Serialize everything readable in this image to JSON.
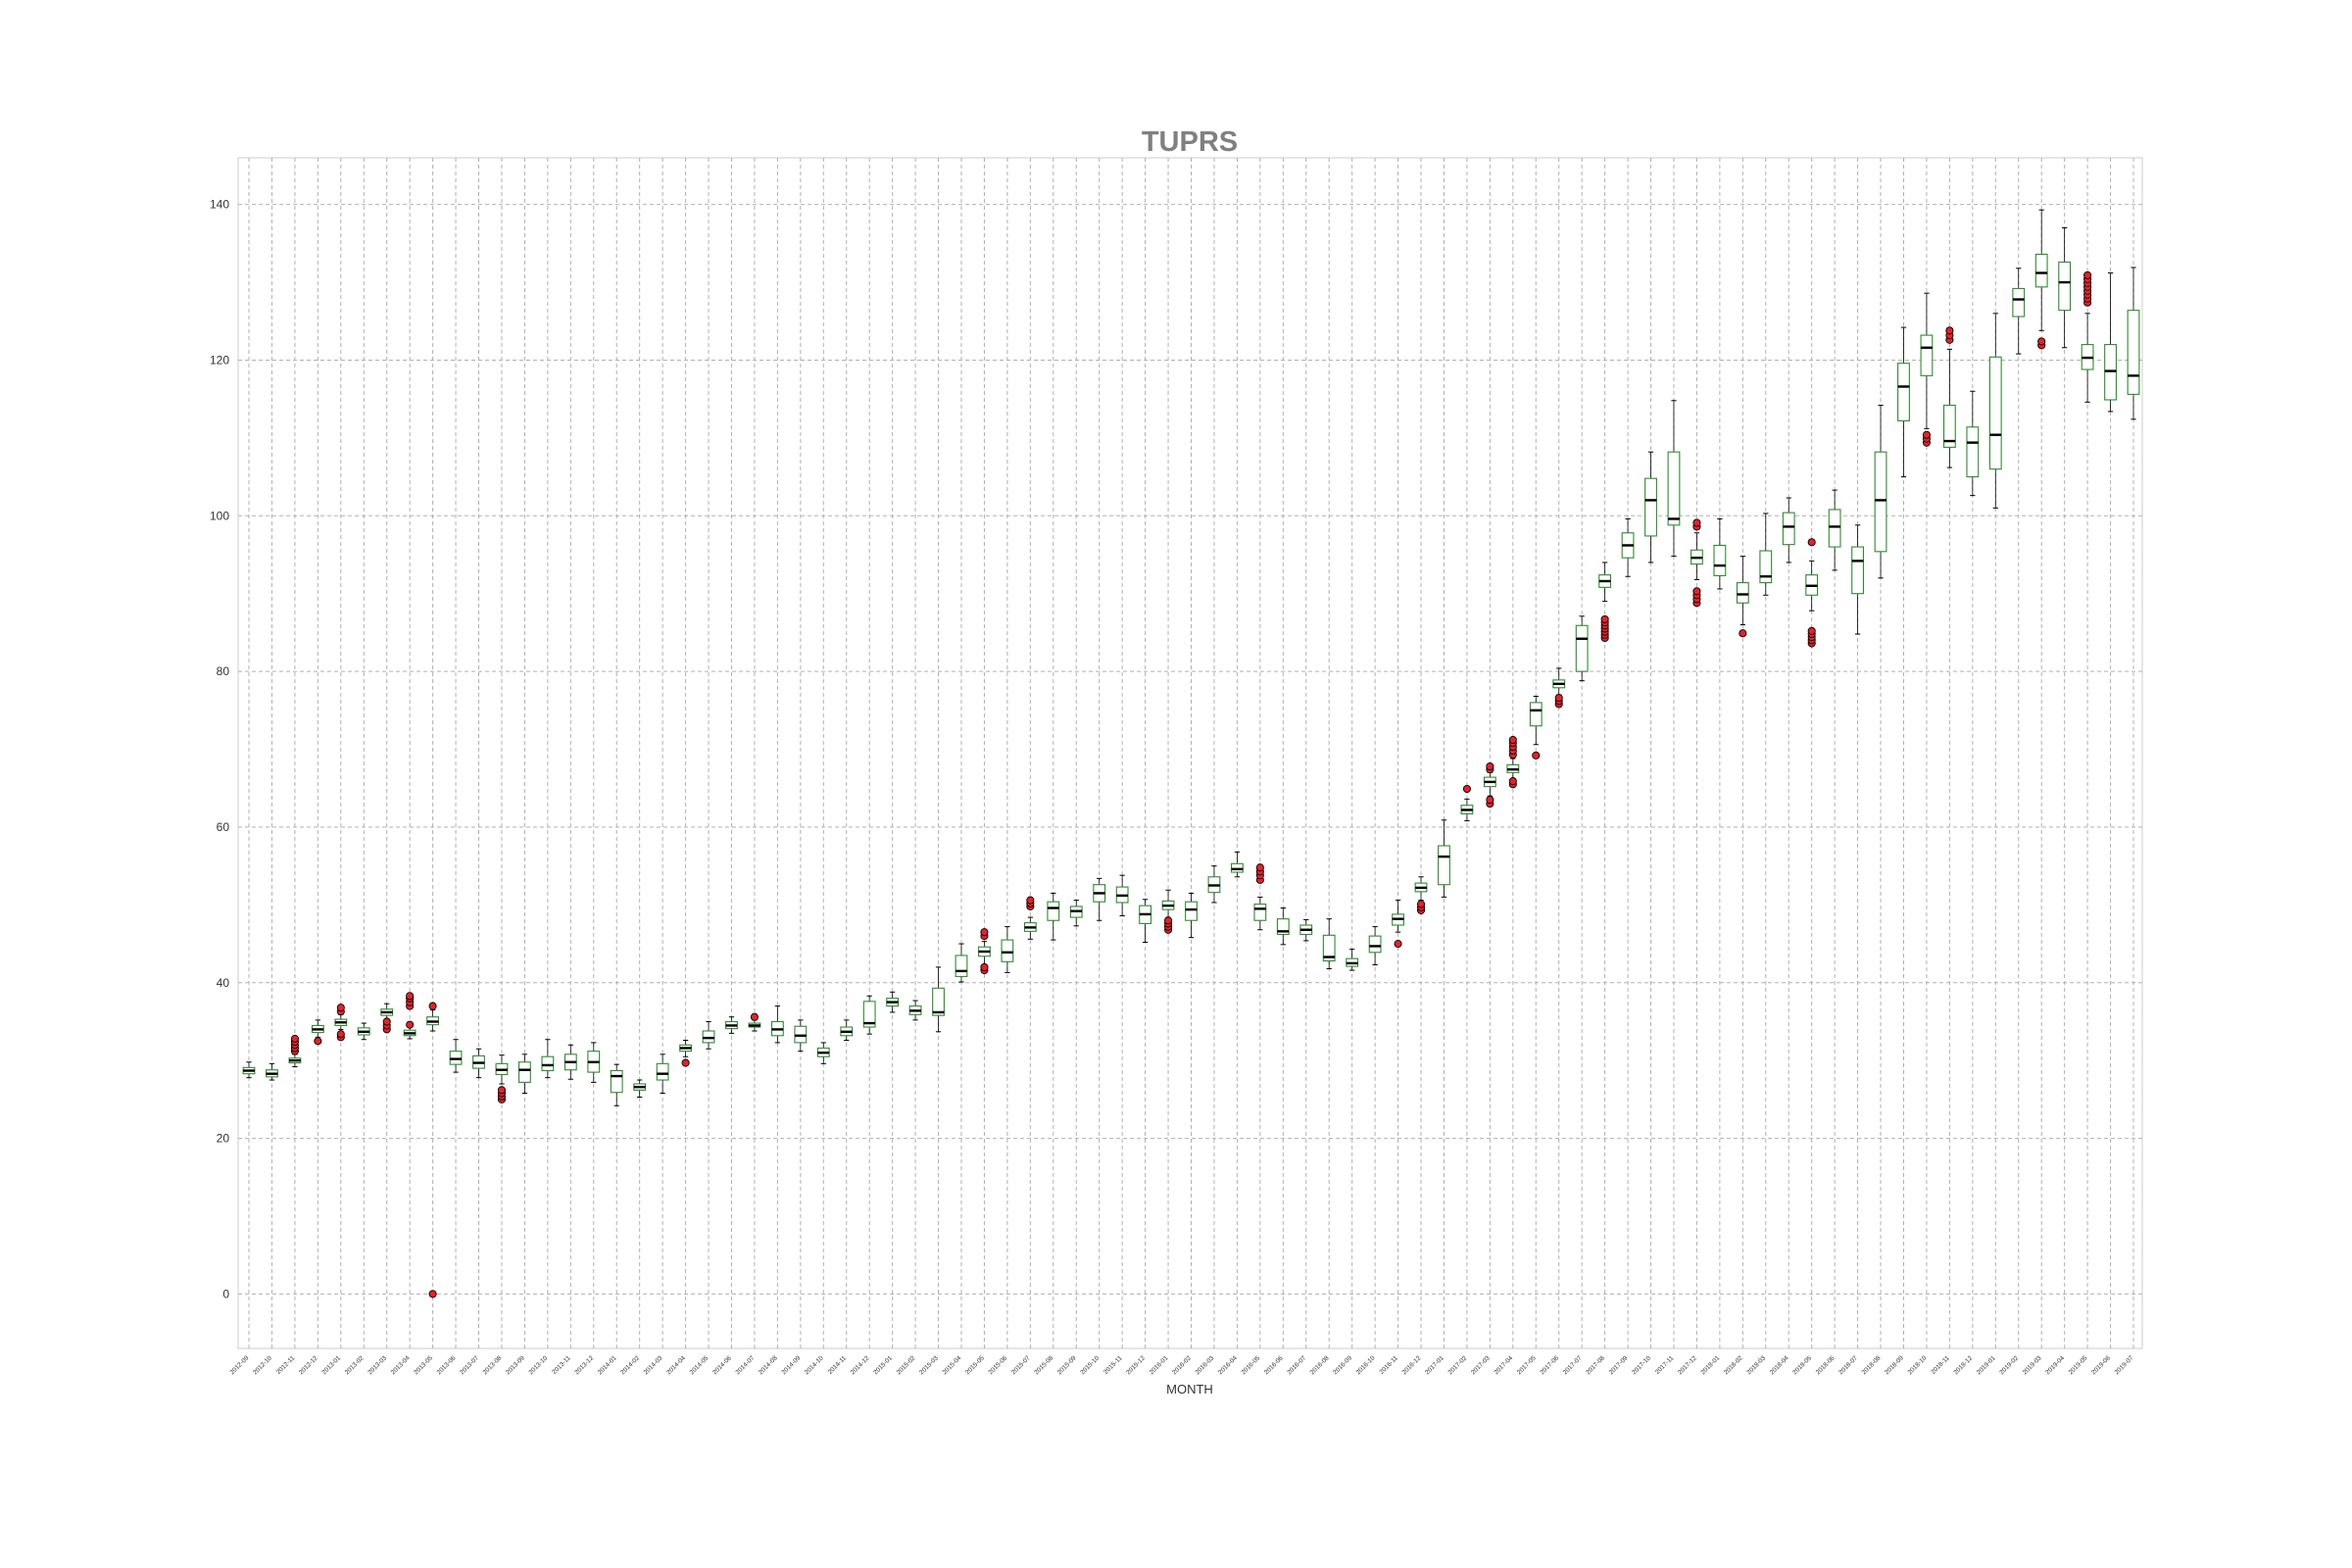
{
  "chart_data": {
    "type": "box",
    "title": "TUPRS",
    "xlabel": "MONTH",
    "ylabel": "",
    "ylim": [
      -7,
      146
    ],
    "yticks": [
      0,
      20,
      40,
      60,
      80,
      100,
      120,
      140
    ],
    "grid": true,
    "colors": {
      "box": "#2e8b2e",
      "median": "#000000",
      "outlier_fill": "#e8202a",
      "outlier_edge": "#000000",
      "whisker": "#000000",
      "grid": "#b0b0b0",
      "title": "#808080"
    },
    "boxes": [
      {
        "label": "2012-09",
        "whislo": 27.8,
        "q1": 28.3,
        "med": 28.7,
        "q3": 29.1,
        "whishi": 29.8,
        "fliers": []
      },
      {
        "label": "2012-10",
        "whislo": 27.5,
        "q1": 27.9,
        "med": 28.3,
        "q3": 28.8,
        "whishi": 29.6,
        "fliers": []
      },
      {
        "label": "2012-11",
        "whislo": 29.2,
        "q1": 29.7,
        "med": 30.0,
        "q3": 30.3,
        "whishi": 30.8,
        "fliers": [
          31.2,
          31.6,
          32.0,
          32.4,
          32.8
        ]
      },
      {
        "label": "2012-12",
        "whislo": 33.0,
        "q1": 33.6,
        "med": 34.0,
        "q3": 34.5,
        "whishi": 35.2,
        "fliers": [
          32.5
        ]
      },
      {
        "label": "2013-01",
        "whislo": 34.0,
        "q1": 34.5,
        "med": 34.9,
        "q3": 35.3,
        "whishi": 35.9,
        "fliers": [
          33.0,
          33.4,
          36.3,
          36.8
        ]
      },
      {
        "label": "2013-02",
        "whislo": 32.7,
        "q1": 33.3,
        "med": 33.7,
        "q3": 34.2,
        "whishi": 34.8,
        "fliers": []
      },
      {
        "label": "2013-03",
        "whislo": 35.0,
        "q1": 35.8,
        "med": 36.2,
        "q3": 36.6,
        "whishi": 37.3,
        "fliers": [
          34.0,
          34.5,
          35.0
        ]
      },
      {
        "label": "2013-04",
        "whislo": 32.8,
        "q1": 33.2,
        "med": 33.5,
        "q3": 33.9,
        "whishi": 34.3,
        "fliers": [
          34.6,
          37.0,
          37.5,
          38.0,
          38.3
        ]
      },
      {
        "label": "2013-05",
        "whislo": 33.8,
        "q1": 34.6,
        "med": 35.0,
        "q3": 35.6,
        "whishi": 36.5,
        "fliers": [
          37.0,
          0.0
        ]
      },
      {
        "label": "2013-06",
        "whislo": 28.5,
        "q1": 29.5,
        "med": 30.2,
        "q3": 31.2,
        "whishi": 32.7,
        "fliers": []
      },
      {
        "label": "2013-07",
        "whislo": 27.8,
        "q1": 29.0,
        "med": 29.7,
        "q3": 30.6,
        "whishi": 31.5,
        "fliers": []
      },
      {
        "label": "2013-08",
        "whislo": 27.0,
        "q1": 28.2,
        "med": 28.8,
        "q3": 29.6,
        "whishi": 30.7,
        "fliers": [
          25.0,
          25.4,
          25.8,
          26.2
        ]
      },
      {
        "label": "2013-09",
        "whislo": 25.8,
        "q1": 27.2,
        "med": 28.8,
        "q3": 29.8,
        "whishi": 30.8,
        "fliers": []
      },
      {
        "label": "2013-10",
        "whislo": 27.8,
        "q1": 28.7,
        "med": 29.4,
        "q3": 30.5,
        "whishi": 32.7,
        "fliers": []
      },
      {
        "label": "2013-11",
        "whislo": 27.6,
        "q1": 28.8,
        "med": 29.8,
        "q3": 30.8,
        "whishi": 32.0,
        "fliers": []
      },
      {
        "label": "2013-12",
        "whislo": 27.2,
        "q1": 28.5,
        "med": 29.8,
        "q3": 31.2,
        "whishi": 32.3,
        "fliers": []
      },
      {
        "label": "2014-01",
        "whislo": 24.2,
        "q1": 25.9,
        "med": 28.0,
        "q3": 28.7,
        "whishi": 29.5,
        "fliers": []
      },
      {
        "label": "2014-02",
        "whislo": 25.3,
        "q1": 26.2,
        "med": 26.6,
        "q3": 27.0,
        "whishi": 27.5,
        "fliers": []
      },
      {
        "label": "2014-03",
        "whislo": 25.8,
        "q1": 27.5,
        "med": 28.3,
        "q3": 29.6,
        "whishi": 30.8,
        "fliers": []
      },
      {
        "label": "2014-04",
        "whislo": 30.5,
        "q1": 31.2,
        "med": 31.6,
        "q3": 32.0,
        "whishi": 32.6,
        "fliers": [
          29.7
        ]
      },
      {
        "label": "2014-05",
        "whislo": 31.5,
        "q1": 32.3,
        "med": 32.9,
        "q3": 33.8,
        "whishi": 35.0,
        "fliers": []
      },
      {
        "label": "2014-06",
        "whislo": 33.5,
        "q1": 34.1,
        "med": 34.5,
        "q3": 35.0,
        "whishi": 35.6,
        "fliers": []
      },
      {
        "label": "2014-07",
        "whislo": 33.8,
        "q1": 34.3,
        "med": 34.5,
        "q3": 34.8,
        "whishi": 35.2,
        "fliers": [
          35.6
        ]
      },
      {
        "label": "2014-08",
        "whislo": 32.3,
        "q1": 33.2,
        "med": 34.0,
        "q3": 35.0,
        "whishi": 37.0,
        "fliers": []
      },
      {
        "label": "2014-09",
        "whislo": 31.2,
        "q1": 32.3,
        "med": 33.2,
        "q3": 34.4,
        "whishi": 35.2,
        "fliers": []
      },
      {
        "label": "2014-10",
        "whislo": 29.6,
        "q1": 30.5,
        "med": 31.0,
        "q3": 31.6,
        "whishi": 32.3,
        "fliers": []
      },
      {
        "label": "2014-11",
        "whislo": 32.6,
        "q1": 33.2,
        "med": 33.7,
        "q3": 34.3,
        "whishi": 35.2,
        "fliers": []
      },
      {
        "label": "2014-12",
        "whislo": 33.4,
        "q1": 34.3,
        "med": 34.8,
        "q3": 37.6,
        "whishi": 38.3,
        "fliers": []
      },
      {
        "label": "2015-01",
        "whislo": 36.2,
        "q1": 37.0,
        "med": 37.5,
        "q3": 38.0,
        "whishi": 38.8,
        "fliers": []
      },
      {
        "label": "2015-02",
        "whislo": 35.2,
        "q1": 35.9,
        "med": 36.4,
        "q3": 37.0,
        "whishi": 37.7,
        "fliers": []
      },
      {
        "label": "2015-03",
        "whislo": 33.7,
        "q1": 35.8,
        "med": 36.2,
        "q3": 39.3,
        "whishi": 42.0,
        "fliers": []
      },
      {
        "label": "2015-04",
        "whislo": 40.1,
        "q1": 40.8,
        "med": 41.5,
        "q3": 43.5,
        "whishi": 45.0,
        "fliers": []
      },
      {
        "label": "2015-05",
        "whislo": 42.3,
        "q1": 43.4,
        "med": 44.0,
        "q3": 44.6,
        "whishi": 45.3,
        "fliers": [
          41.6,
          42.0,
          46.0,
          46.5
        ]
      },
      {
        "label": "2015-06",
        "whislo": 41.3,
        "q1": 42.7,
        "med": 43.9,
        "q3": 45.5,
        "whishi": 47.2,
        "fliers": []
      },
      {
        "label": "2015-07",
        "whislo": 45.6,
        "q1": 46.6,
        "med": 47.1,
        "q3": 47.7,
        "whishi": 48.4,
        "fliers": [
          49.8,
          50.2,
          50.6
        ]
      },
      {
        "label": "2015-08",
        "whislo": 45.5,
        "q1": 48.0,
        "med": 49.6,
        "q3": 50.4,
        "whishi": 51.5,
        "fliers": []
      },
      {
        "label": "2015-09",
        "whislo": 47.3,
        "q1": 48.4,
        "med": 49.2,
        "q3": 49.8,
        "whishi": 50.6,
        "fliers": []
      },
      {
        "label": "2015-10",
        "whislo": 48.0,
        "q1": 50.4,
        "med": 51.5,
        "q3": 52.6,
        "whishi": 53.4,
        "fliers": []
      },
      {
        "label": "2015-11",
        "whislo": 48.6,
        "q1": 50.3,
        "med": 51.2,
        "q3": 52.3,
        "whishi": 53.8,
        "fliers": []
      },
      {
        "label": "2015-12",
        "whislo": 45.2,
        "q1": 47.6,
        "med": 48.8,
        "q3": 49.9,
        "whishi": 50.7,
        "fliers": []
      },
      {
        "label": "2016-01",
        "whislo": 48.3,
        "q1": 49.4,
        "med": 49.9,
        "q3": 50.5,
        "whishi": 51.9,
        "fliers": [
          46.8,
          47.2,
          47.6,
          48.0
        ]
      },
      {
        "label": "2016-02",
        "whislo": 45.8,
        "q1": 48.0,
        "med": 49.4,
        "q3": 50.4,
        "whishi": 51.5,
        "fliers": []
      },
      {
        "label": "2016-03",
        "whislo": 50.3,
        "q1": 51.6,
        "med": 52.5,
        "q3": 53.6,
        "whishi": 55.0,
        "fliers": []
      },
      {
        "label": "2016-04",
        "whislo": 53.6,
        "q1": 54.2,
        "med": 54.6,
        "q3": 55.3,
        "whishi": 56.8,
        "fliers": []
      },
      {
        "label": "2016-05",
        "whislo": 46.8,
        "q1": 48.0,
        "med": 49.5,
        "q3": 50.1,
        "whishi": 51.0,
        "fliers": [
          53.2,
          53.8,
          54.3,
          54.8
        ]
      },
      {
        "label": "2016-06",
        "whislo": 44.9,
        "q1": 46.2,
        "med": 46.6,
        "q3": 48.2,
        "whishi": 49.6,
        "fliers": []
      },
      {
        "label": "2016-07",
        "whislo": 45.4,
        "q1": 46.2,
        "med": 46.8,
        "q3": 47.4,
        "whishi": 48.1,
        "fliers": []
      },
      {
        "label": "2016-08",
        "whislo": 41.8,
        "q1": 42.8,
        "med": 43.3,
        "q3": 46.1,
        "whishi": 48.2,
        "fliers": []
      },
      {
        "label": "2016-09",
        "whislo": 41.6,
        "q1": 42.1,
        "med": 42.5,
        "q3": 43.1,
        "whishi": 44.3,
        "fliers": []
      },
      {
        "label": "2016-10",
        "whislo": 42.3,
        "q1": 43.9,
        "med": 44.7,
        "q3": 46.0,
        "whishi": 47.2,
        "fliers": []
      },
      {
        "label": "2016-11",
        "whislo": 46.5,
        "q1": 47.4,
        "med": 48.2,
        "q3": 48.8,
        "whishi": 50.6,
        "fliers": [
          45.0
        ]
      },
      {
        "label": "2016-12",
        "whislo": 50.6,
        "q1": 51.7,
        "med": 52.2,
        "q3": 52.8,
        "whishi": 53.6,
        "fliers": [
          49.3,
          49.7,
          50.1
        ]
      },
      {
        "label": "2017-01",
        "whislo": 51.0,
        "q1": 52.6,
        "med": 56.2,
        "q3": 57.6,
        "whishi": 60.9,
        "fliers": []
      },
      {
        "label": "2017-02",
        "whislo": 60.8,
        "q1": 61.7,
        "med": 62.2,
        "q3": 62.8,
        "whishi": 63.6,
        "fliers": [
          64.9
        ]
      },
      {
        "label": "2017-03",
        "whislo": 64.0,
        "q1": 65.2,
        "med": 65.8,
        "q3": 66.4,
        "whishi": 67.0,
        "fliers": [
          63.0,
          63.5,
          67.4,
          67.8
        ]
      },
      {
        "label": "2017-04",
        "whislo": 66.0,
        "q1": 67.0,
        "med": 67.4,
        "q3": 68.0,
        "whishi": 68.8,
        "fliers": [
          65.5,
          65.9,
          69.3,
          69.8,
          70.3,
          70.8,
          71.2
        ]
      },
      {
        "label": "2017-05",
        "whislo": 70.6,
        "q1": 73.0,
        "med": 75.0,
        "q3": 76.0,
        "whishi": 76.8,
        "fliers": [
          69.2
        ]
      },
      {
        "label": "2017-06",
        "whislo": 77.0,
        "q1": 77.9,
        "med": 78.4,
        "q3": 78.9,
        "whishi": 80.4,
        "fliers": [
          75.8,
          76.2,
          76.6
        ]
      },
      {
        "label": "2017-07",
        "whislo": 78.8,
        "q1": 80.0,
        "med": 84.2,
        "q3": 85.9,
        "whishi": 87.1,
        "fliers": []
      },
      {
        "label": "2017-08",
        "whislo": 89.0,
        "q1": 90.8,
        "med": 91.6,
        "q3": 92.4,
        "whishi": 94.0,
        "fliers": [
          84.3,
          84.7,
          85.1,
          85.5,
          85.9,
          86.3,
          86.7
        ]
      },
      {
        "label": "2017-09",
        "whislo": 92.2,
        "q1": 94.6,
        "med": 96.2,
        "q3": 97.8,
        "whishi": 99.6,
        "fliers": []
      },
      {
        "label": "2017-10",
        "whislo": 94.0,
        "q1": 97.4,
        "med": 102.0,
        "q3": 104.8,
        "whishi": 108.2,
        "fliers": []
      },
      {
        "label": "2017-11",
        "whislo": 94.8,
        "q1": 98.8,
        "med": 99.6,
        "q3": 108.2,
        "whishi": 114.8,
        "fliers": []
      },
      {
        "label": "2017-12",
        "whislo": 91.8,
        "q1": 93.8,
        "med": 94.6,
        "q3": 95.6,
        "whishi": 97.8,
        "fliers": [
          88.8,
          89.3,
          89.8,
          90.3,
          98.6,
          99.1
        ]
      },
      {
        "label": "2018-01",
        "whislo": 90.6,
        "q1": 92.3,
        "med": 93.6,
        "q3": 96.2,
        "whishi": 99.6,
        "fliers": []
      },
      {
        "label": "2018-02",
        "whislo": 86.0,
        "q1": 88.8,
        "med": 89.9,
        "q3": 91.4,
        "whishi": 94.8,
        "fliers": [
          84.9
        ]
      },
      {
        "label": "2018-03",
        "whislo": 89.8,
        "q1": 91.4,
        "med": 92.2,
        "q3": 95.5,
        "whishi": 100.3,
        "fliers": []
      },
      {
        "label": "2018-04",
        "whislo": 94.0,
        "q1": 96.3,
        "med": 98.6,
        "q3": 100.4,
        "whishi": 102.3,
        "fliers": []
      },
      {
        "label": "2018-05",
        "whislo": 87.8,
        "q1": 89.8,
        "med": 91.0,
        "q3": 92.4,
        "whishi": 94.2,
        "fliers": [
          83.6,
          84.0,
          84.4,
          84.8,
          85.2,
          96.6
        ]
      },
      {
        "label": "2018-06",
        "whislo": 93.0,
        "q1": 96.0,
        "med": 98.6,
        "q3": 100.8,
        "whishi": 103.3,
        "fliers": []
      },
      {
        "label": "2018-07",
        "whislo": 84.8,
        "q1": 90.0,
        "med": 94.2,
        "q3": 96.0,
        "whishi": 98.8,
        "fliers": []
      },
      {
        "label": "2018-08",
        "whislo": 92.0,
        "q1": 95.4,
        "med": 102.0,
        "q3": 108.2,
        "whishi": 114.2,
        "fliers": []
      },
      {
        "label": "2018-09",
        "whislo": 105.0,
        "q1": 112.2,
        "med": 116.6,
        "q3": 119.6,
        "whishi": 124.2,
        "fliers": []
      },
      {
        "label": "2018-10",
        "whislo": 111.2,
        "q1": 118.0,
        "med": 121.6,
        "q3": 123.2,
        "whishi": 128.6,
        "fliers": [
          109.4,
          109.9,
          110.4
        ]
      },
      {
        "label": "2018-11",
        "whislo": 106.2,
        "q1": 108.8,
        "med": 109.6,
        "q3": 114.2,
        "whishi": 121.4,
        "fliers": [
          122.6,
          123.2,
          123.8
        ]
      },
      {
        "label": "2018-12",
        "whislo": 102.6,
        "q1": 105.0,
        "med": 109.4,
        "q3": 111.4,
        "whishi": 116.0,
        "fliers": []
      },
      {
        "label": "2019-01",
        "whislo": 101.0,
        "q1": 106.0,
        "med": 110.4,
        "q3": 120.4,
        "whishi": 126.0,
        "fliers": []
      },
      {
        "label": "2019-02",
        "whislo": 120.8,
        "q1": 125.6,
        "med": 127.8,
        "q3": 129.2,
        "whishi": 131.8,
        "fliers": []
      },
      {
        "label": "2019-03",
        "whislo": 123.8,
        "q1": 129.4,
        "med": 131.2,
        "q3": 133.6,
        "whishi": 139.3,
        "fliers": [
          121.9,
          122.4
        ]
      },
      {
        "label": "2019-04",
        "whislo": 121.6,
        "q1": 126.4,
        "med": 130.0,
        "q3": 132.6,
        "whishi": 137.0,
        "fliers": []
      },
      {
        "label": "2019-05",
        "whislo": 114.6,
        "q1": 118.8,
        "med": 120.3,
        "q3": 122.0,
        "whishi": 126.0,
        "fliers": [
          127.4,
          127.9,
          128.4,
          128.9,
          129.4,
          129.9,
          130.4,
          130.9
        ]
      },
      {
        "label": "2019-06",
        "whislo": 113.4,
        "q1": 114.9,
        "med": 118.6,
        "q3": 122.0,
        "whishi": 131.2,
        "fliers": []
      },
      {
        "label": "2019-07",
        "whislo": 112.4,
        "q1": 115.6,
        "med": 118.0,
        "q3": 126.4,
        "whishi": 131.9,
        "fliers": []
      }
    ]
  }
}
